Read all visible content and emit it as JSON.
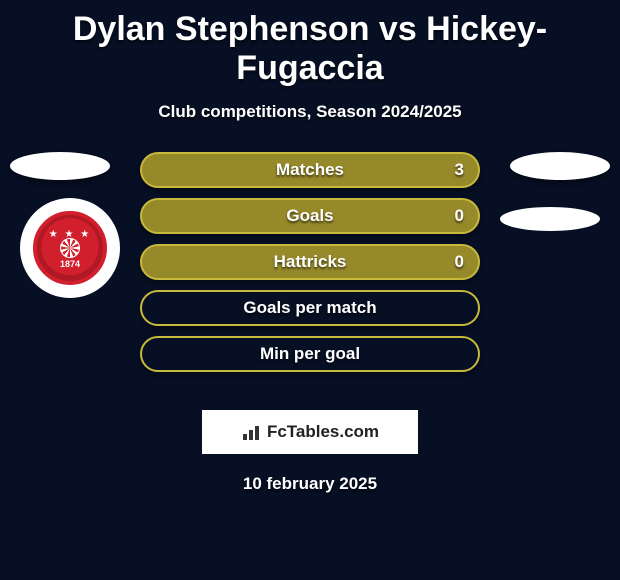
{
  "header": {
    "title": "Dylan Stephenson vs Hickey-Fugaccia",
    "subtitle": "Club competitions, Season 2024/2025"
  },
  "badge": {
    "year": "1874",
    "stars": "★ ★ ★",
    "primary_color": "#d11f2e"
  },
  "bars": {
    "fill_color": "#96892a",
    "border_color": "#c7b93c",
    "empty_fill": "transparent",
    "items": [
      {
        "label": "Matches",
        "value": "3",
        "filled": true
      },
      {
        "label": "Goals",
        "value": "0",
        "filled": true
      },
      {
        "label": "Hattricks",
        "value": "0",
        "filled": true
      },
      {
        "label": "Goals per match",
        "value": "",
        "filled": false
      },
      {
        "label": "Min per goal",
        "value": "",
        "filled": false
      }
    ]
  },
  "brand": {
    "name": "FcTables.com"
  },
  "footer": {
    "date": "10 february 2025"
  },
  "colors": {
    "background": "#060f23",
    "text": "#ffffff"
  }
}
